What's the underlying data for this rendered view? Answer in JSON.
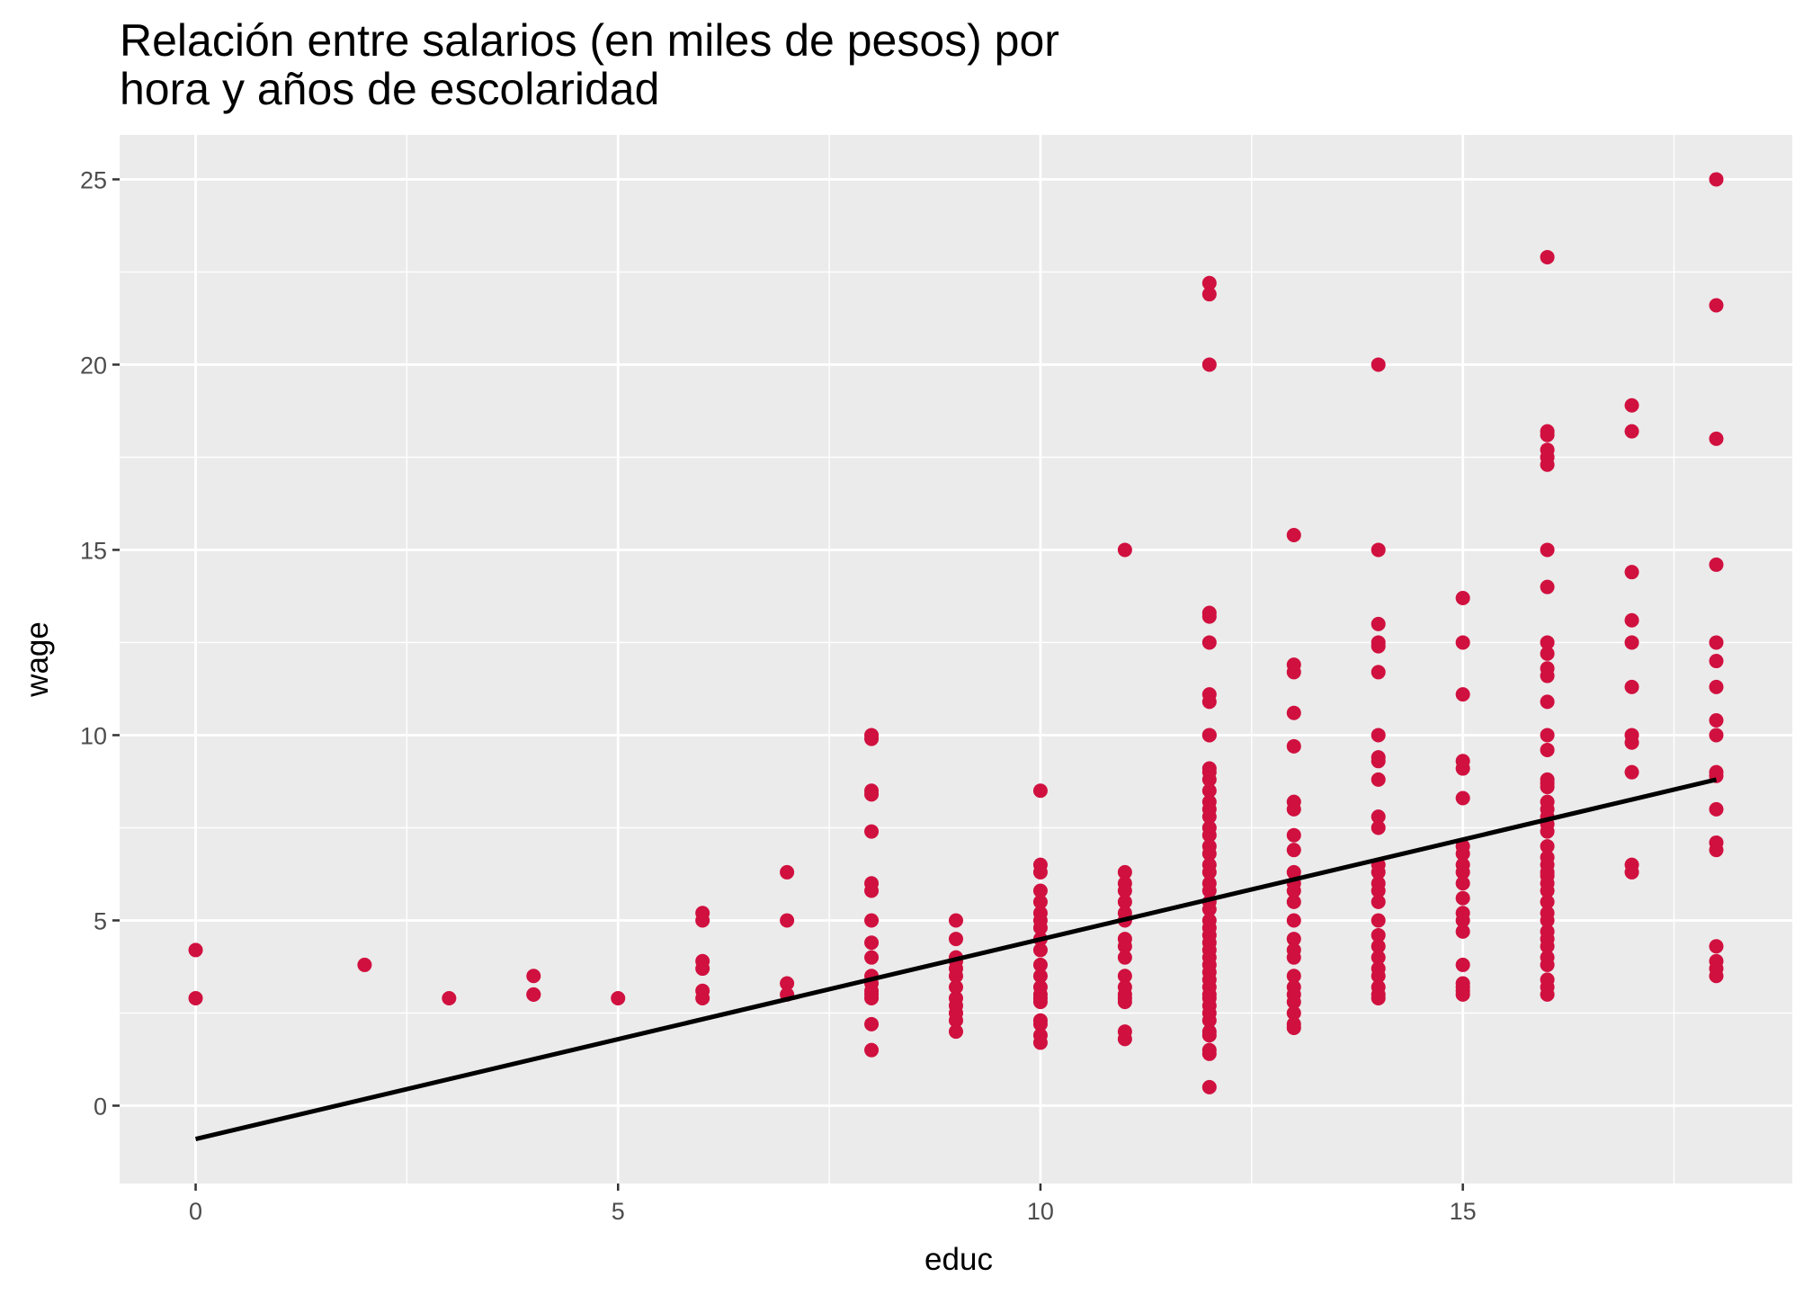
{
  "chart_data": {
    "type": "scatter",
    "title": "Relación entre salarios (en miles de pesos) por",
    "subtitle": "hora y años de escolaridad",
    "xlabel": "educ",
    "ylabel": "wage",
    "xlim": [
      -0.9,
      18.9
    ],
    "ylim": [
      -2.1,
      26.2
    ],
    "x_ticks": [
      0,
      5,
      10,
      15
    ],
    "x_tick_labels": [
      "0",
      "5",
      "10",
      "15"
    ],
    "y_ticks": [
      0,
      5,
      10,
      15,
      20,
      25
    ],
    "y_tick_labels": [
      "0",
      "5",
      "10",
      "15",
      "20",
      "25"
    ],
    "grid": true,
    "legend": "none",
    "point_color": "#D0103F",
    "line_color": "#000000",
    "panel_color": "#EBEBEB",
    "grid_color": "#FFFFFF",
    "fit_line": {
      "x": [
        0,
        18
      ],
      "y": [
        -0.9,
        8.8
      ]
    },
    "points": [
      [
        0,
        4.2
      ],
      [
        0,
        2.9
      ],
      [
        2,
        3.8
      ],
      [
        3,
        2.9
      ],
      [
        4,
        3.5
      ],
      [
        4,
        3.0
      ],
      [
        4,
        3.0
      ],
      [
        5,
        2.9
      ],
      [
        6,
        5.2
      ],
      [
        6,
        5.0
      ],
      [
        6,
        3.9
      ],
      [
        6,
        3.7
      ],
      [
        6,
        3.1
      ],
      [
        6,
        2.9
      ],
      [
        7,
        6.3
      ],
      [
        7,
        5.0
      ],
      [
        7,
        3.3
      ],
      [
        7,
        3.0
      ],
      [
        8,
        10.0
      ],
      [
        8,
        9.9
      ],
      [
        8,
        8.5
      ],
      [
        8,
        8.4
      ],
      [
        8,
        7.4
      ],
      [
        8,
        6.0
      ],
      [
        8,
        5.8
      ],
      [
        8,
        5.0
      ],
      [
        8,
        4.4
      ],
      [
        8,
        4.0
      ],
      [
        8,
        3.5
      ],
      [
        8,
        3.3
      ],
      [
        8,
        3.1
      ],
      [
        8,
        3.0
      ],
      [
        8,
        2.9
      ],
      [
        8,
        2.2
      ],
      [
        8,
        1.5
      ],
      [
        9,
        5.0
      ],
      [
        9,
        4.5
      ],
      [
        9,
        4.0
      ],
      [
        9,
        3.9
      ],
      [
        9,
        3.7
      ],
      [
        9,
        3.5
      ],
      [
        9,
        3.2
      ],
      [
        9,
        2.9
      ],
      [
        9,
        2.7
      ],
      [
        9,
        2.5
      ],
      [
        9,
        2.3
      ],
      [
        9,
        2.0
      ],
      [
        10,
        8.5
      ],
      [
        10,
        6.5
      ],
      [
        10,
        6.3
      ],
      [
        10,
        5.8
      ],
      [
        10,
        5.5
      ],
      [
        10,
        5.2
      ],
      [
        10,
        5.0
      ],
      [
        10,
        4.8
      ],
      [
        10,
        4.5
      ],
      [
        10,
        4.2
      ],
      [
        10,
        3.8
      ],
      [
        10,
        3.5
      ],
      [
        10,
        3.2
      ],
      [
        10,
        3.0
      ],
      [
        10,
        2.9
      ],
      [
        10,
        2.8
      ],
      [
        10,
        2.3
      ],
      [
        10,
        2.2
      ],
      [
        10,
        1.9
      ],
      [
        10,
        1.7
      ],
      [
        11,
        15.0
      ],
      [
        11,
        6.3
      ],
      [
        11,
        6.0
      ],
      [
        11,
        5.8
      ],
      [
        11,
        5.5
      ],
      [
        11,
        5.2
      ],
      [
        11,
        5.0
      ],
      [
        11,
        4.5
      ],
      [
        11,
        4.3
      ],
      [
        11,
        4.0
      ],
      [
        11,
        3.5
      ],
      [
        11,
        3.2
      ],
      [
        11,
        3.0
      ],
      [
        11,
        2.9
      ],
      [
        11,
        2.8
      ],
      [
        11,
        2.0
      ],
      [
        11,
        1.8
      ],
      [
        12,
        22.2
      ],
      [
        12,
        21.9
      ],
      [
        12,
        20.0
      ],
      [
        12,
        13.3
      ],
      [
        12,
        13.2
      ],
      [
        12,
        12.5
      ],
      [
        12,
        11.1
      ],
      [
        12,
        10.9
      ],
      [
        12,
        10.0
      ],
      [
        12,
        10.0
      ],
      [
        12,
        9.1
      ],
      [
        12,
        9.0
      ],
      [
        12,
        8.8
      ],
      [
        12,
        8.5
      ],
      [
        12,
        8.2
      ],
      [
        12,
        8.0
      ],
      [
        12,
        7.8
      ],
      [
        12,
        7.5
      ],
      [
        12,
        7.3
      ],
      [
        12,
        7.0
      ],
      [
        12,
        6.8
      ],
      [
        12,
        6.5
      ],
      [
        12,
        6.3
      ],
      [
        12,
        6.0
      ],
      [
        12,
        5.8
      ],
      [
        12,
        5.5
      ],
      [
        12,
        5.3
      ],
      [
        12,
        5.0
      ],
      [
        12,
        4.8
      ],
      [
        12,
        4.6
      ],
      [
        12,
        4.4
      ],
      [
        12,
        4.2
      ],
      [
        12,
        4.0
      ],
      [
        12,
        3.8
      ],
      [
        12,
        3.6
      ],
      [
        12,
        3.4
      ],
      [
        12,
        3.2
      ],
      [
        12,
        3.0
      ],
      [
        12,
        2.9
      ],
      [
        12,
        2.7
      ],
      [
        12,
        2.5
      ],
      [
        12,
        2.3
      ],
      [
        12,
        2.0
      ],
      [
        12,
        1.9
      ],
      [
        12,
        1.5
      ],
      [
        12,
        1.4
      ],
      [
        12,
        0.5
      ],
      [
        13,
        15.4
      ],
      [
        13,
        11.9
      ],
      [
        13,
        11.7
      ],
      [
        13,
        10.6
      ],
      [
        13,
        9.7
      ],
      [
        13,
        8.2
      ],
      [
        13,
        8.0
      ],
      [
        13,
        7.3
      ],
      [
        13,
        6.9
      ],
      [
        13,
        6.3
      ],
      [
        13,
        6.0
      ],
      [
        13,
        5.8
      ],
      [
        13,
        5.5
      ],
      [
        13,
        5.0
      ],
      [
        13,
        4.5
      ],
      [
        13,
        4.2
      ],
      [
        13,
        4.0
      ],
      [
        13,
        3.5
      ],
      [
        13,
        3.2
      ],
      [
        13,
        3.0
      ],
      [
        13,
        2.8
      ],
      [
        13,
        2.5
      ],
      [
        13,
        2.2
      ],
      [
        13,
        2.1
      ],
      [
        14,
        20.0
      ],
      [
        14,
        15.0
      ],
      [
        14,
        13.0
      ],
      [
        14,
        12.5
      ],
      [
        14,
        12.4
      ],
      [
        14,
        11.7
      ],
      [
        14,
        10.0
      ],
      [
        14,
        9.4
      ],
      [
        14,
        9.3
      ],
      [
        14,
        8.8
      ],
      [
        14,
        7.8
      ],
      [
        14,
        7.5
      ],
      [
        14,
        6.5
      ],
      [
        14,
        6.3
      ],
      [
        14,
        6.0
      ],
      [
        14,
        5.8
      ],
      [
        14,
        5.5
      ],
      [
        14,
        5.0
      ],
      [
        14,
        4.6
      ],
      [
        14,
        4.3
      ],
      [
        14,
        4.0
      ],
      [
        14,
        3.7
      ],
      [
        14,
        3.5
      ],
      [
        14,
        3.2
      ],
      [
        14,
        3.0
      ],
      [
        14,
        2.9
      ],
      [
        15,
        13.7
      ],
      [
        15,
        12.5
      ],
      [
        15,
        11.1
      ],
      [
        15,
        9.3
      ],
      [
        15,
        9.1
      ],
      [
        15,
        8.3
      ],
      [
        15,
        7.0
      ],
      [
        15,
        6.8
      ],
      [
        15,
        6.5
      ],
      [
        15,
        6.3
      ],
      [
        15,
        6.0
      ],
      [
        15,
        5.6
      ],
      [
        15,
        5.2
      ],
      [
        15,
        5.0
      ],
      [
        15,
        4.7
      ],
      [
        15,
        3.8
      ],
      [
        15,
        3.3
      ],
      [
        15,
        3.2
      ],
      [
        15,
        3.1
      ],
      [
        15,
        3.0
      ],
      [
        16,
        22.9
      ],
      [
        16,
        18.2
      ],
      [
        16,
        18.1
      ],
      [
        16,
        17.7
      ],
      [
        16,
        17.5
      ],
      [
        16,
        17.3
      ],
      [
        16,
        15.0
      ],
      [
        16,
        14.0
      ],
      [
        16,
        12.5
      ],
      [
        16,
        12.2
      ],
      [
        16,
        11.8
      ],
      [
        16,
        11.6
      ],
      [
        16,
        10.9
      ],
      [
        16,
        10.0
      ],
      [
        16,
        9.6
      ],
      [
        16,
        8.8
      ],
      [
        16,
        8.7
      ],
      [
        16,
        8.6
      ],
      [
        16,
        8.2
      ],
      [
        16,
        8.0
      ],
      [
        16,
        7.8
      ],
      [
        16,
        7.6
      ],
      [
        16,
        7.4
      ],
      [
        16,
        7.0
      ],
      [
        16,
        6.7
      ],
      [
        16,
        6.5
      ],
      [
        16,
        6.3
      ],
      [
        16,
        6.2
      ],
      [
        16,
        6.0
      ],
      [
        16,
        5.8
      ],
      [
        16,
        5.5
      ],
      [
        16,
        5.2
      ],
      [
        16,
        5.0
      ],
      [
        16,
        4.7
      ],
      [
        16,
        4.5
      ],
      [
        16,
        4.3
      ],
      [
        16,
        4.0
      ],
      [
        16,
        3.8
      ],
      [
        16,
        3.4
      ],
      [
        16,
        3.2
      ],
      [
        16,
        3.0
      ],
      [
        17,
        18.9
      ],
      [
        17,
        18.2
      ],
      [
        17,
        14.4
      ],
      [
        17,
        13.1
      ],
      [
        17,
        12.5
      ],
      [
        17,
        11.3
      ],
      [
        17,
        10.0
      ],
      [
        17,
        9.8
      ],
      [
        17,
        9.0
      ],
      [
        17,
        6.5
      ],
      [
        17,
        6.3
      ],
      [
        18,
        25.0
      ],
      [
        18,
        21.6
      ],
      [
        18,
        18.0
      ],
      [
        18,
        14.6
      ],
      [
        18,
        12.5
      ],
      [
        18,
        12.0
      ],
      [
        18,
        11.3
      ],
      [
        18,
        10.4
      ],
      [
        18,
        10.0
      ],
      [
        18,
        9.0
      ],
      [
        18,
        8.9
      ],
      [
        18,
        8.0
      ],
      [
        18,
        7.1
      ],
      [
        18,
        6.9
      ],
      [
        18,
        4.3
      ],
      [
        18,
        3.9
      ],
      [
        18,
        3.7
      ],
      [
        18,
        3.5
      ]
    ]
  }
}
